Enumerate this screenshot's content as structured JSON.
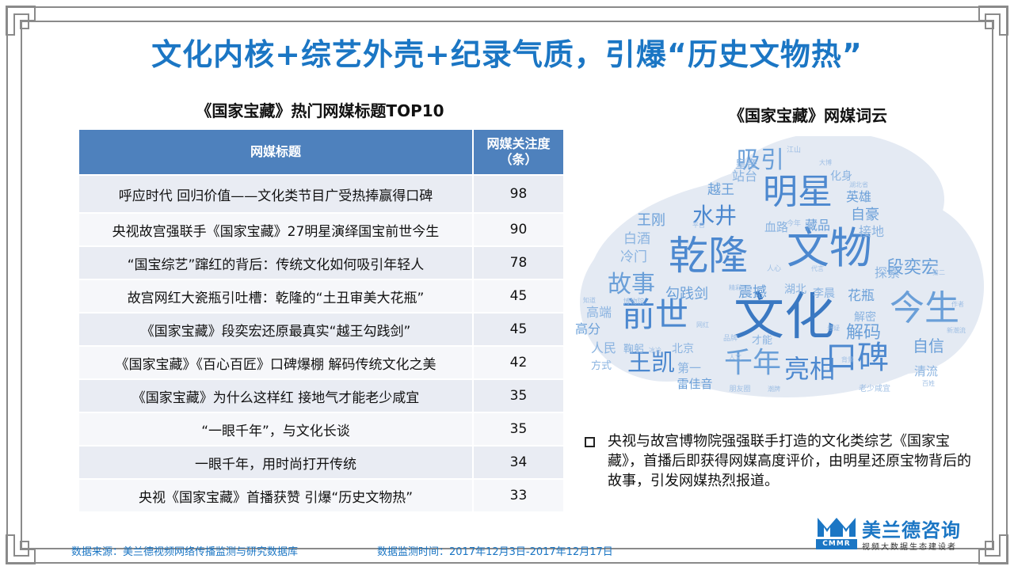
{
  "title": "文化内核+综艺外壳+纪录气质，引爆“历史文物热”",
  "table": {
    "title": "《国家宝藏》热门网媒标题TOP10",
    "headers": [
      "网媒标题",
      "网媒关注度（条）"
    ],
    "rows": [
      {
        "headline": "呼应时代 回归价值——文化类节目广受热捧赢得口碑",
        "attention": "98"
      },
      {
        "headline": "央视故宫强联手《国家宝藏》27明星演绎国宝前世今生",
        "attention": "90"
      },
      {
        "headline": "“国宝综艺”蹿红的背后：传统文化如何吸引年轻人",
        "attention": "78"
      },
      {
        "headline": "故宫网红大瓷瓶引吐槽：乾隆的“土丑审美大花瓶”",
        "attention": "45"
      },
      {
        "headline": "《国家宝藏》段奕宏还原最真实“越王勾践剑”",
        "attention": "45"
      },
      {
        "headline": "《国家宝藏》《百心百匠》口碑爆棚 解码传统文化之美",
        "attention": "42"
      },
      {
        "headline": "《国家宝藏》为什么这样红 接地气才能老少咸宜",
        "attention": "35"
      },
      {
        "headline": "“一眼千年”，与文化长谈",
        "attention": "35"
      },
      {
        "headline": "一眼千年，用时尚打开传统",
        "attention": "34"
      },
      {
        "headline": "央视《国家宝藏》首播获赞 引爆“历史文物热”",
        "attention": "33"
      }
    ]
  },
  "cloud": {
    "title": "《国家宝藏》网媒词云",
    "words": [
      {
        "text": "文化",
        "weight": 10
      },
      {
        "text": "乾隆",
        "weight": 9
      },
      {
        "text": "文物",
        "weight": 9
      },
      {
        "text": "今生",
        "weight": 8
      },
      {
        "text": "前世",
        "weight": 8
      },
      {
        "text": "明星",
        "weight": 8
      },
      {
        "text": "口碑",
        "weight": 7
      },
      {
        "text": "千年",
        "weight": 7
      },
      {
        "text": "亮相",
        "weight": 7
      },
      {
        "text": "王凯",
        "weight": 7
      },
      {
        "text": "吸引",
        "weight": 6
      },
      {
        "text": "水井",
        "weight": 6
      },
      {
        "text": "故事",
        "weight": 6
      },
      {
        "text": "段奕宏",
        "weight": 5
      },
      {
        "text": "解码",
        "weight": 5
      },
      {
        "text": "自信",
        "weight": 4
      },
      {
        "text": "越王",
        "weight": 4
      },
      {
        "text": "自豪",
        "weight": 4
      },
      {
        "text": "英雄",
        "weight": 4
      },
      {
        "text": "王刚",
        "weight": 4
      },
      {
        "text": "站台",
        "weight": 3
      },
      {
        "text": "藏品",
        "weight": 3
      },
      {
        "text": "接地",
        "weight": 3
      },
      {
        "text": "白酒",
        "weight": 3
      },
      {
        "text": "冷门",
        "weight": 3
      },
      {
        "text": "血路",
        "weight": 3
      },
      {
        "text": "勾践剑",
        "weight": 3
      },
      {
        "text": "震撼",
        "weight": 3
      },
      {
        "text": "花瓶",
        "weight": 3
      },
      {
        "text": "探索",
        "weight": 3
      },
      {
        "text": "高端",
        "weight": 3
      },
      {
        "text": "高分",
        "weight": 3
      },
      {
        "text": "人民",
        "weight": 3
      },
      {
        "text": "清流",
        "weight": 3
      },
      {
        "text": "解密",
        "weight": 3
      },
      {
        "text": "湖北",
        "weight": 2
      },
      {
        "text": "李晨",
        "weight": 2
      },
      {
        "text": "皇帝",
        "weight": 2
      },
      {
        "text": "化身",
        "weight": 2
      },
      {
        "text": "第一",
        "weight": 2
      },
      {
        "text": "雷佳音",
        "weight": 2
      },
      {
        "text": "北京",
        "weight": 2
      },
      {
        "text": "方式",
        "weight": 2
      },
      {
        "text": "鞠躬",
        "weight": 2
      },
      {
        "text": "才能",
        "weight": 2
      },
      {
        "text": "博物院",
        "weight": 1
      },
      {
        "text": "老少咸宜",
        "weight": 1
      },
      {
        "text": "江山",
        "weight": 1
      },
      {
        "text": "大博",
        "weight": 1
      },
      {
        "text": "湖北省",
        "weight": 1
      },
      {
        "text": "平台",
        "weight": 1
      },
      {
        "text": "今年",
        "weight": 1
      },
      {
        "text": "人心",
        "weight": 1
      },
      {
        "text": "代言",
        "weight": 1
      },
      {
        "text": "精彩",
        "weight": 1
      },
      {
        "text": "知道",
        "weight": 1
      },
      {
        "text": "网红",
        "weight": 1
      },
      {
        "text": "品牌",
        "weight": 1
      },
      {
        "text": "冰冷",
        "weight": 1
      },
      {
        "text": "人文",
        "weight": 1
      },
      {
        "text": "朋友圈",
        "weight": 1
      },
      {
        "text": "潮牌",
        "weight": 1
      },
      {
        "text": "背景",
        "weight": 1
      },
      {
        "text": "作者",
        "weight": 1
      },
      {
        "text": "新潮流",
        "weight": 1
      },
      {
        "text": "百姓",
        "weight": 1
      },
      {
        "text": "第二",
        "weight": 1
      },
      {
        "text": "悬疑",
        "weight": 1
      }
    ]
  },
  "note": "央视与故宫博物院强强联手打造的文化类综艺《国家宝藏》，首播后即获得网媒高度评价，由明星还原宝物背后的故事，引发网媒热烈报道。",
  "footer": {
    "source": "数据来源：美兰德视频网络传播监测与研究数据库",
    "time": "数据监测时间：2017年12月3日-2017年12月17日"
  },
  "logo": {
    "name": "美兰德咨询",
    "abbr": "CMMR",
    "tagline": "视频大数据生态建设者"
  },
  "colors": {
    "title": "#1b76c4",
    "table_header": "#4e81bd",
    "row_odd": "#e9ecf3",
    "row_even": "#f6f7fa",
    "cloud_background": "#e4eaf3"
  }
}
